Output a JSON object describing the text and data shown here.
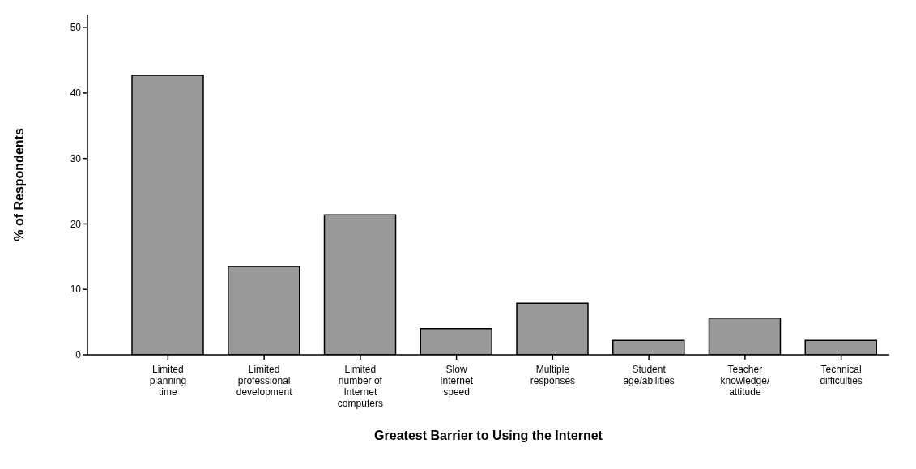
{
  "chart_data": {
    "type": "bar",
    "xlabel": "Greatest Barrier to Using the Internet",
    "ylabel": "% of Respondents",
    "categories": [
      "Limited\nplanning\ntime",
      "Limited\nprofessional\ndevelopment",
      "Limited\nnumber of\nInternet\ncomputers",
      "Slow\nInternet\nspeed",
      "Multiple\nresponses",
      "Student\nage/abilities",
      "Teacher\nknowledge/\nattitude",
      "Technical\ndifficulties"
    ],
    "values": [
      42.7,
      13.5,
      21.4,
      4.0,
      7.9,
      2.2,
      5.6,
      2.2
    ],
    "color": "#999999",
    "ylim": [
      0,
      52
    ],
    "yticks": [
      0,
      10,
      20,
      30,
      40,
      50
    ],
    "grid": false
  }
}
